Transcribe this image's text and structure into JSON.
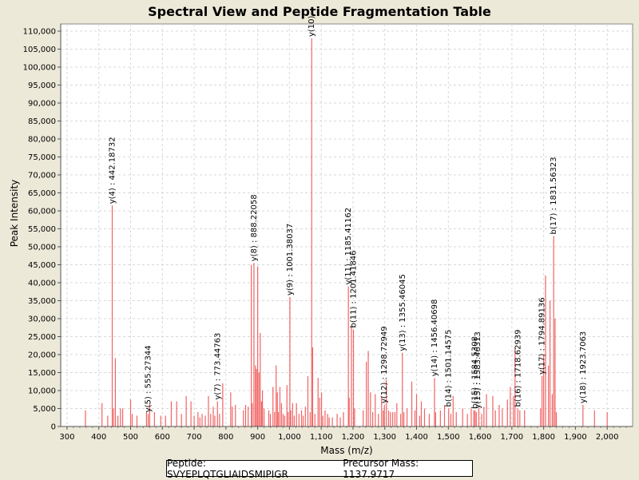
{
  "chart_data": {
    "type": "bar",
    "title": "Spectral View and Peptide Fragmentation Table",
    "xlabel": "Mass (m/z)",
    "ylabel": "Peak Intensity",
    "xlim": [
      280,
      2080
    ],
    "ylim": [
      0,
      112000
    ],
    "xticks": [
      300,
      400,
      500,
      600,
      700,
      800,
      900,
      1000,
      1100,
      1200,
      1300,
      1400,
      1500,
      1600,
      1700,
      1800,
      1900,
      2000
    ],
    "xtick_labels": [
      "300",
      "400",
      "500",
      "600",
      "700",
      "800",
      "900",
      "1,000",
      "1,100",
      "1,200",
      "1,300",
      "1,400",
      "1,500",
      "1,600",
      "1,700",
      "1,800",
      "1,900",
      "2,000"
    ],
    "yticks": [
      0,
      5000,
      10000,
      15000,
      20000,
      25000,
      30000,
      35000,
      40000,
      45000,
      50000,
      55000,
      60000,
      65000,
      70000,
      75000,
      80000,
      85000,
      90000,
      95000,
      100000,
      105000,
      110000
    ],
    "ytick_labels": [
      "0",
      "5,000",
      "10,000",
      "15,000",
      "20,000",
      "25,000",
      "30,000",
      "35,000",
      "40,000",
      "45,000",
      "50,000",
      "55,000",
      "60,000",
      "65,000",
      "70,000",
      "75,000",
      "80,000",
      "85,000",
      "90,000",
      "95,000",
      "100,000",
      "105,000",
      "110,000"
    ],
    "grid": true,
    "peak_color": "#f06464",
    "peaks": [
      [
        358,
        4500
      ],
      [
        410,
        6500
      ],
      [
        428,
        3000
      ],
      [
        442.19,
        61500
      ],
      [
        446,
        5000
      ],
      [
        452,
        19000
      ],
      [
        460,
        3000
      ],
      [
        468,
        5000
      ],
      [
        475,
        5000
      ],
      [
        500,
        7500
      ],
      [
        505,
        3500
      ],
      [
        520,
        3000
      ],
      [
        550,
        4000
      ],
      [
        555.27,
        3500
      ],
      [
        560,
        6500
      ],
      [
        575,
        4000
      ],
      [
        595,
        3000
      ],
      [
        610,
        3000
      ],
      [
        628,
        7000
      ],
      [
        645,
        7000
      ],
      [
        660,
        3500
      ],
      [
        675,
        8500
      ],
      [
        690,
        7000
      ],
      [
        700,
        3000
      ],
      [
        712,
        4000
      ],
      [
        718,
        2500
      ],
      [
        725,
        3500
      ],
      [
        735,
        3000
      ],
      [
        745,
        8500
      ],
      [
        752,
        3500
      ],
      [
        760,
        5500
      ],
      [
        765,
        3000
      ],
      [
        773.45,
        7000
      ],
      [
        780,
        3500
      ],
      [
        790,
        12000
      ],
      [
        815,
        9500
      ],
      [
        820,
        5500
      ],
      [
        830,
        6000
      ],
      [
        855,
        4500
      ],
      [
        862,
        6000
      ],
      [
        870,
        5500
      ],
      [
        880,
        45000
      ],
      [
        883,
        6500
      ],
      [
        888.22,
        45500
      ],
      [
        893,
        17000
      ],
      [
        896,
        16000
      ],
      [
        900,
        44500
      ],
      [
        904,
        15000
      ],
      [
        908,
        26000
      ],
      [
        912,
        7000
      ],
      [
        915,
        10000
      ],
      [
        920,
        5000
      ],
      [
        935,
        4500
      ],
      [
        940,
        3500
      ],
      [
        948,
        11000
      ],
      [
        953,
        4000
      ],
      [
        958,
        17000
      ],
      [
        962,
        9500
      ],
      [
        965,
        4000
      ],
      [
        970,
        11000
      ],
      [
        975,
        6500
      ],
      [
        980,
        3500
      ],
      [
        985,
        3000
      ],
      [
        992,
        11500
      ],
      [
        996,
        4000
      ],
      [
        1001.38,
        36000
      ],
      [
        1004,
        4500
      ],
      [
        1010,
        6500
      ],
      [
        1015,
        3000
      ],
      [
        1022,
        6500
      ],
      [
        1030,
        3500
      ],
      [
        1038,
        4500
      ],
      [
        1043,
        3000
      ],
      [
        1050,
        5500
      ],
      [
        1058,
        14000
      ],
      [
        1065,
        4000
      ],
      [
        1070,
        108000
      ],
      [
        1073,
        22000
      ],
      [
        1080,
        3500
      ],
      [
        1090,
        13500
      ],
      [
        1095,
        8000
      ],
      [
        1101,
        9500
      ],
      [
        1105,
        3000
      ],
      [
        1112,
        4500
      ],
      [
        1120,
        3500
      ],
      [
        1125,
        2500
      ],
      [
        1135,
        2500
      ],
      [
        1150,
        3500
      ],
      [
        1160,
        2500
      ],
      [
        1170,
        4000
      ],
      [
        1185.41,
        39000
      ],
      [
        1188,
        8000
      ],
      [
        1195,
        28000
      ],
      [
        1201.42,
        27000
      ],
      [
        1205,
        5000
      ],
      [
        1232,
        4500
      ],
      [
        1242,
        18000
      ],
      [
        1248,
        21000
      ],
      [
        1255,
        9500
      ],
      [
        1262,
        4000
      ],
      [
        1270,
        9000
      ],
      [
        1280,
        3500
      ],
      [
        1290,
        8500
      ],
      [
        1295,
        4500
      ],
      [
        1298.73,
        6000
      ],
      [
        1305,
        13000
      ],
      [
        1312,
        4500
      ],
      [
        1318,
        4000
      ],
      [
        1325,
        4000
      ],
      [
        1332,
        4000
      ],
      [
        1338,
        6500
      ],
      [
        1350,
        3500
      ],
      [
        1355.46,
        20500
      ],
      [
        1360,
        4000
      ],
      [
        1370,
        5000
      ],
      [
        1385,
        12500
      ],
      [
        1395,
        4500
      ],
      [
        1400,
        9000
      ],
      [
        1410,
        3000
      ],
      [
        1415,
        7000
      ],
      [
        1425,
        5000
      ],
      [
        1440,
        3500
      ],
      [
        1456.41,
        13500
      ],
      [
        1460,
        4000
      ],
      [
        1475,
        4500
      ],
      [
        1488,
        6000
      ],
      [
        1501.15,
        5000
      ],
      [
        1508,
        3500
      ],
      [
        1515,
        8500
      ],
      [
        1525,
        4000
      ],
      [
        1545,
        5000
      ],
      [
        1560,
        3500
      ],
      [
        1572,
        5000
      ],
      [
        1580,
        4500
      ],
      [
        1584,
        4500
      ],
      [
        1588,
        4000
      ],
      [
        1596,
        5000
      ],
      [
        1605,
        3500
      ],
      [
        1612,
        5500
      ],
      [
        1620,
        9000
      ],
      [
        1640,
        8500
      ],
      [
        1648,
        4500
      ],
      [
        1660,
        6000
      ],
      [
        1670,
        5000
      ],
      [
        1686,
        7500
      ],
      [
        1695,
        11000
      ],
      [
        1705,
        8500
      ],
      [
        1710,
        22000
      ],
      [
        1718.63,
        5000
      ],
      [
        1725,
        4500
      ],
      [
        1740,
        4500
      ],
      [
        1790,
        5000
      ],
      [
        1794.89,
        14000
      ],
      [
        1800,
        20000
      ],
      [
        1806,
        42000
      ],
      [
        1815,
        17000
      ],
      [
        1820,
        35000
      ],
      [
        1827,
        9000
      ],
      [
        1831.56,
        53000
      ],
      [
        1836,
        30000
      ],
      [
        1840,
        4000
      ],
      [
        1923.71,
        6000
      ],
      [
        1960,
        4500
      ],
      [
        2000,
        4000
      ]
    ],
    "annotations": [
      {
        "x": 442.19,
        "y": 61500,
        "text": "y(4) : 442.18732"
      },
      {
        "x": 555.27,
        "y": 3500,
        "text": "y(5) : 555.27344"
      },
      {
        "x": 773.45,
        "y": 7000,
        "text": "y(7) : 773.44763"
      },
      {
        "x": 888.22,
        "y": 45500,
        "text": "y(8) : 888.22058"
      },
      {
        "x": 1001.38,
        "y": 36000,
        "text": "y(9) : 1001.38037"
      },
      {
        "x": 1070,
        "y": 108000,
        "text": "y(10)"
      },
      {
        "x": 1185.41,
        "y": 39000,
        "text": "y(11) : 1185.41162"
      },
      {
        "x": 1201.42,
        "y": 27000,
        "text": "b(11) : 1201.41846"
      },
      {
        "x": 1298.73,
        "y": 6000,
        "text": "y(12) : 1298.72949"
      },
      {
        "x": 1355.46,
        "y": 20500,
        "text": "y(13) : 1355.46045"
      },
      {
        "x": 1456.41,
        "y": 13500,
        "text": "y(14) : 1456.40698"
      },
      {
        "x": 1501.15,
        "y": 5000,
        "text": "b(14) : 1501.14575"
      },
      {
        "x": 1584,
        "y": 4500,
        "text": "b(15) : 1584.5308"
      },
      {
        "x": 1592,
        "y": 4500,
        "text": "y(15) : 1583.46313"
      },
      {
        "x": 1718.63,
        "y": 5000,
        "text": "b(16) : 1718.62939"
      },
      {
        "x": 1794.89,
        "y": 14000,
        "text": "y(17) : 1794.89136"
      },
      {
        "x": 1831.56,
        "y": 53000,
        "text": "b(17) : 1831.56323"
      },
      {
        "x": 1923.71,
        "y": 6000,
        "text": "y(18) : 1923.7063"
      }
    ]
  },
  "footer": {
    "peptide_label": "Peptide: SVYEPLQTGLIAIDSMIPIGR",
    "precursor_label": "Precursor Mass: 1137.9717"
  }
}
